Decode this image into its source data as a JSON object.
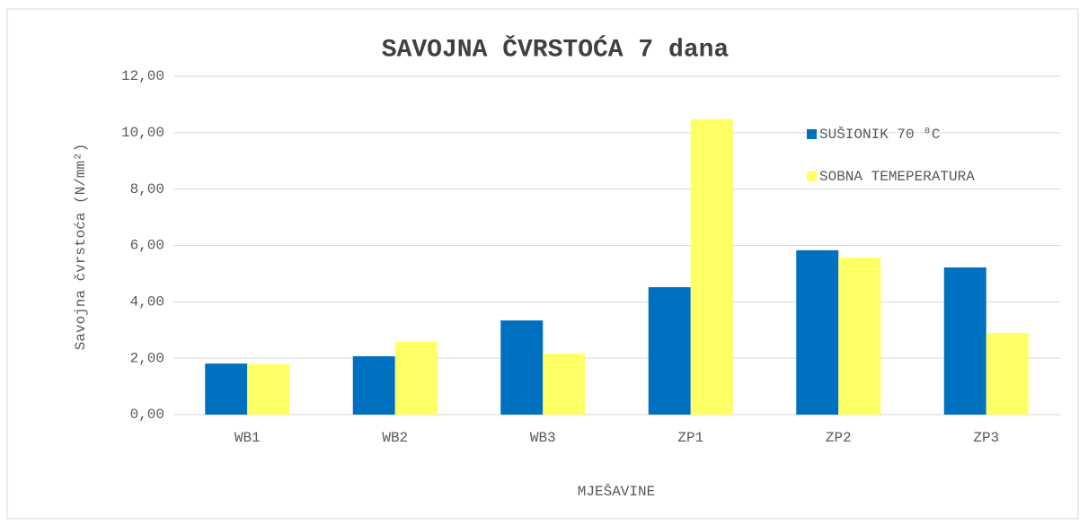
{
  "chart_data": {
    "type": "bar",
    "title": "SAVOJNA ČVRSTOĆA 7 dana",
    "x_label": "MJEŠAVINE",
    "y_label": "Savojna čvrstoća (N/mm²)",
    "categories": [
      "WB1",
      "WB2",
      "WB3",
      "ZP1",
      "ZP2",
      "ZP3"
    ],
    "series": [
      {
        "name": "SUŠIONIK 70 ⁰C",
        "color": "#0070c0",
        "values": [
          1.81,
          2.07,
          3.34,
          4.52,
          5.83,
          5.22
        ]
      },
      {
        "name": "SOBNA TEMEPERATURA",
        "color": "#ffff66",
        "values": [
          1.8,
          2.58,
          2.17,
          10.48,
          5.57,
          2.9
        ]
      }
    ],
    "ylim": [
      0,
      12
    ],
    "yticks": [
      {
        "value": 0,
        "label": "0,00"
      },
      {
        "value": 2,
        "label": "2,00"
      },
      {
        "value": 4,
        "label": "4,00"
      },
      {
        "value": 6,
        "label": "6,00"
      },
      {
        "value": 8,
        "label": "8,00"
      },
      {
        "value": 10,
        "label": "10,00"
      },
      {
        "value": 12,
        "label": "12,00"
      }
    ],
    "grid": true,
    "legend": "right"
  }
}
